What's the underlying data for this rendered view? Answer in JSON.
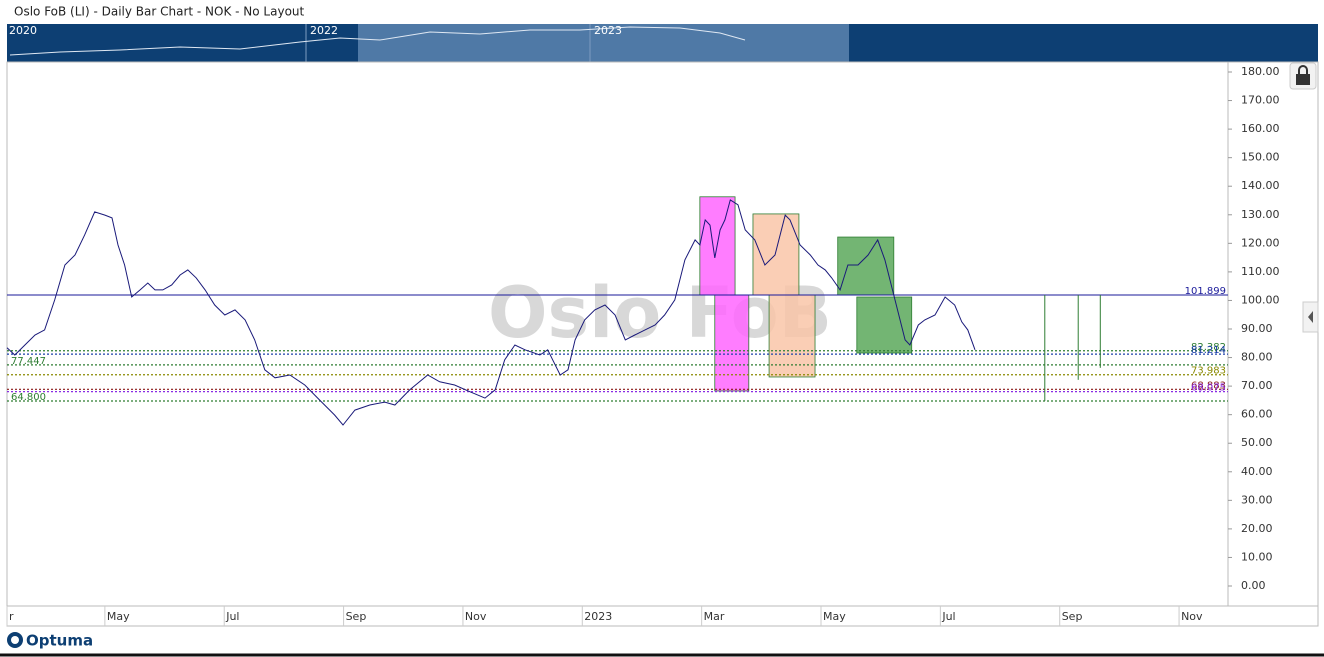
{
  "chart_data": {
    "type": "line",
    "title": "Oslo FoB (LI) - Daily Bar Chart - NOK - No Layout",
    "watermark": "Oslo FoB",
    "logo": "Optuma",
    "navigator_labels": [
      "2020",
      "2022",
      "2023"
    ],
    "xlim": [
      2.36,
      22.82
    ],
    "xticks": [
      {
        "value": 2.36,
        "label": "r"
      },
      {
        "value": 4,
        "label": "May"
      },
      {
        "value": 6,
        "label": "Jul"
      },
      {
        "value": 8,
        "label": "Sep"
      },
      {
        "value": 10,
        "label": "Nov"
      },
      {
        "value": 12,
        "label": "2023"
      },
      {
        "value": 14,
        "label": "Mar"
      },
      {
        "value": 16,
        "label": "May"
      },
      {
        "value": 18,
        "label": "Jul"
      },
      {
        "value": 20,
        "label": "Sep"
      },
      {
        "value": 22,
        "label": "Nov"
      }
    ],
    "ylim": [
      -7,
      183.5
    ],
    "yticks": [
      {
        "value": 0,
        "label": "0.00"
      },
      {
        "value": 10,
        "label": "10.00"
      },
      {
        "value": 20,
        "label": "20.00"
      },
      {
        "value": 30,
        "label": "30.00"
      },
      {
        "value": 40,
        "label": "40.00"
      },
      {
        "value": 50,
        "label": "50.00"
      },
      {
        "value": 60,
        "label": "60.00"
      },
      {
        "value": 70,
        "label": "70.00"
      },
      {
        "value": 80,
        "label": "80.00"
      },
      {
        "value": 90,
        "label": "90.00"
      },
      {
        "value": 100,
        "label": "100.00"
      },
      {
        "value": 110,
        "label": "110.00"
      },
      {
        "value": 120,
        "label": "120.00"
      },
      {
        "value": 130,
        "label": "130.00"
      },
      {
        "value": 140,
        "label": "140.00"
      },
      {
        "value": 150,
        "label": "150.00"
      },
      {
        "value": 160,
        "label": "160.00"
      },
      {
        "value": 170,
        "label": "170.00"
      },
      {
        "value": 180,
        "label": "180.00"
      }
    ],
    "series": [
      {
        "name": "Oslo FoB",
        "color": "#1a1a7a",
        "x": [
          2.36,
          2.49,
          2.66,
          2.83,
          2.99,
          3.16,
          3.33,
          3.5,
          3.66,
          3.83,
          4.0,
          4.12,
          4.22,
          4.33,
          4.45,
          4.59,
          4.72,
          4.84,
          4.97,
          5.12,
          5.26,
          5.39,
          5.53,
          5.68,
          5.84,
          6.01,
          6.18,
          6.35,
          6.51,
          6.68,
          6.85,
          7.1,
          7.35,
          7.6,
          7.85,
          7.99,
          8.19,
          8.44,
          8.69,
          8.86,
          9.11,
          9.41,
          9.61,
          9.86,
          10.12,
          10.37,
          10.54,
          10.7,
          10.87,
          11.04,
          11.29,
          11.42,
          11.63,
          11.76,
          11.88,
          12.04,
          12.21,
          12.38,
          12.55,
          12.72,
          12.88,
          13.05,
          13.22,
          13.38,
          13.55,
          13.72,
          13.89,
          13.97,
          14.06,
          14.14,
          14.22,
          14.31,
          14.39,
          14.48,
          14.61,
          14.73,
          14.89,
          15.06,
          15.23,
          15.4,
          15.48,
          15.65,
          15.82,
          15.95,
          16.07,
          16.18,
          16.32,
          16.45,
          16.62,
          16.79,
          16.95,
          17.07,
          17.24,
          17.41,
          17.49,
          17.63,
          17.74,
          17.91,
          18.08,
          18.24,
          18.36,
          18.46,
          18.58
        ],
        "values": [
          83.4,
          80.9,
          84.4,
          87.9,
          89.7,
          100.2,
          112.4,
          115.9,
          122.9,
          131.0,
          129.9,
          128.9,
          119.4,
          112.4,
          101.2,
          103.7,
          106.1,
          103.7,
          103.7,
          105.4,
          108.9,
          110.7,
          107.9,
          103.7,
          98.4,
          94.9,
          96.7,
          93.2,
          86.2,
          75.7,
          72.9,
          73.9,
          70.4,
          65.1,
          59.9,
          56.4,
          61.6,
          63.4,
          64.4,
          63.4,
          68.7,
          73.9,
          71.5,
          70.4,
          68.0,
          65.8,
          68.7,
          79.2,
          84.4,
          82.7,
          80.9,
          82.7,
          73.9,
          75.7,
          86.2,
          93.2,
          96.7,
          98.4,
          94.9,
          86.2,
          87.9,
          89.7,
          91.4,
          94.9,
          100.2,
          114.2,
          121.2,
          119.4,
          128.2,
          126.4,
          114.9,
          124.7,
          128.2,
          135.2,
          133.5,
          124.7,
          121.2,
          112.4,
          115.9,
          129.9,
          128.2,
          119.4,
          115.9,
          112.4,
          110.7,
          107.9,
          103.7,
          112.4,
          112.4,
          115.9,
          121.2,
          114.2,
          100.2,
          86.2,
          84.4,
          91.4,
          93.2,
          94.9,
          101.2,
          98.4,
          92.5,
          89.7,
          82.7
        ]
      }
    ],
    "levels": [
      {
        "value": 101.899,
        "label": "101.899",
        "color": "#1a1a9a",
        "side": "right"
      },
      {
        "value": 82.382,
        "label": "82.382",
        "color": "#2e7d32",
        "side": "right"
      },
      {
        "value": 81.214,
        "label": "81.214",
        "color": "#1a3ea8",
        "side": "right"
      },
      {
        "value": 77.447,
        "label": "77.447",
        "color": "#2e7d32",
        "side": "left"
      },
      {
        "value": 73.983,
        "label": "73.983",
        "color": "#8a8a00",
        "side": "right"
      },
      {
        "value": 68.883,
        "label": "68.883",
        "color": "#8b1a1a",
        "side": "right"
      },
      {
        "value": 68.075,
        "label": "68.075",
        "color": "#8a2be2",
        "side": "right"
      },
      {
        "value": 64.8,
        "label": "64.800",
        "color": "#2e7d32",
        "side": "left"
      }
    ],
    "boxes": [
      {
        "x": [
          13.97,
          14.56
        ],
        "y": [
          101.9,
          136.3
        ],
        "color": "#ff66ff"
      },
      {
        "x": [
          14.22,
          14.79
        ],
        "y": [
          68.3,
          101.9
        ],
        "color": "#ff66ff"
      },
      {
        "x": [
          14.86,
          15.63
        ],
        "y": [
          101.9,
          130.3
        ],
        "color": "#f9c6a8"
      },
      {
        "x": [
          15.13,
          15.9
        ],
        "y": [
          73.2,
          101.9
        ],
        "color": "#f9c6a8"
      },
      {
        "x": [
          16.28,
          17.22
        ],
        "y": [
          101.9,
          122.2
        ],
        "color": "#5aa85a"
      },
      {
        "x": [
          16.6,
          17.52
        ],
        "y": [
          81.6,
          101.2
        ],
        "color": "#5aa85a"
      }
    ],
    "vlines": [
      {
        "x": 19.75,
        "y": [
          64.8,
          101.9
        ],
        "color": "#2e7d32"
      },
      {
        "x": 20.31,
        "y": [
          72.2,
          101.9
        ],
        "color": "#2e7d32"
      },
      {
        "x": 20.68,
        "y": [
          76.4,
          101.9
        ],
        "color": "#2e7d32"
      }
    ]
  }
}
